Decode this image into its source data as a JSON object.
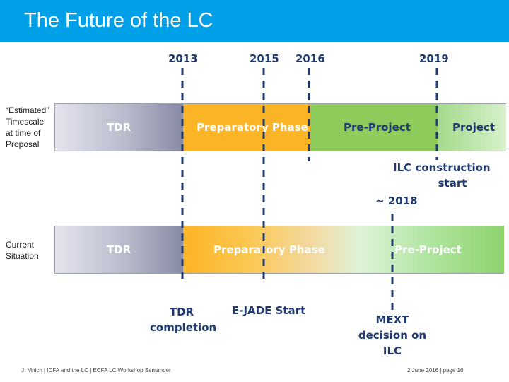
{
  "header": {
    "title": "The Future of the LC"
  },
  "years": [
    "2013",
    "2015",
    "2016",
    "2019"
  ],
  "rows": {
    "estimated": {
      "side_label": [
        "“Estimated”",
        "Timescale",
        "at time of",
        "Proposal"
      ],
      "phases": [
        "TDR",
        "Preparatory Phase",
        "Pre-Project",
        "Project"
      ]
    },
    "current": {
      "side_label": [
        "Current",
        "Situation"
      ],
      "phases": [
        "TDR",
        "Preparatory Phase",
        "Pre-Project"
      ]
    }
  },
  "annotations": {
    "ilc_construction": [
      "ILC construction",
      "start"
    ],
    "approx_2018": "~ 2018",
    "tdr_completion": [
      "TDR",
      "completion"
    ],
    "ejade_start": "E-JADE Start",
    "mext": [
      "MEXT",
      "decision on",
      "ILC"
    ]
  },
  "footer": {
    "left": "J. Mnich  | ICFA and the LC | ECFA LC Workshop Santander",
    "right": "2 June 2016 | page 16"
  },
  "colors": {
    "header": "#00a0e8",
    "tdr": "#8a8ea8",
    "preparatory": "#fbb426",
    "pre_project": "#8dcb5a",
    "project": "#c8eab8",
    "timeline": "#1f3b72"
  }
}
